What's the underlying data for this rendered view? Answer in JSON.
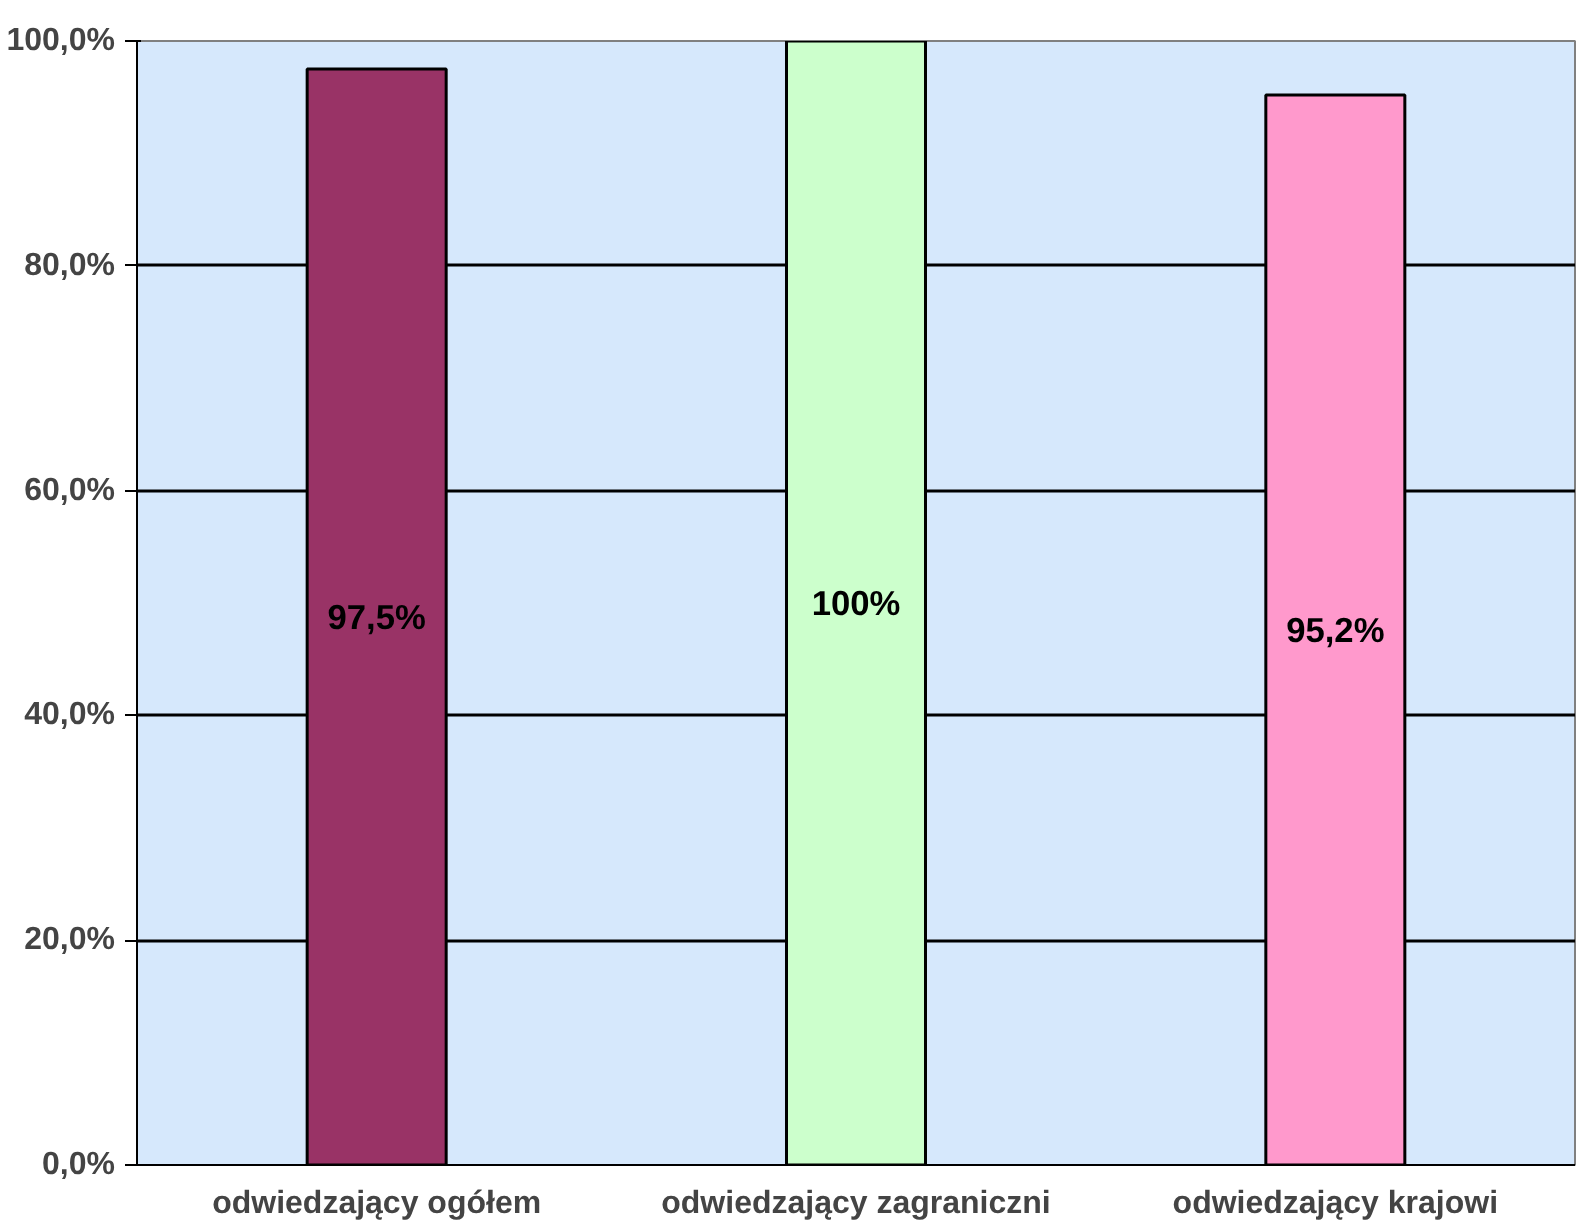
{
  "chart_data": {
    "type": "bar",
    "categories": [
      "odwiedzający ogółem",
      "odwiedzający zagraniczni",
      "odwiedzający krajowi"
    ],
    "values": [
      97.5,
      100,
      95.2
    ],
    "colors": [
      "#993366",
      "#ccffcc",
      "#ff99cc"
    ],
    "value_labels": [
      "97,5%",
      "100%",
      "95,2%"
    ],
    "ylim": [
      0,
      100
    ],
    "yticks": [
      {
        "value": 0,
        "label": "0,0%"
      },
      {
        "value": 20,
        "label": "20,0%"
      },
      {
        "value": 40,
        "label": "40,0%"
      },
      {
        "value": 60,
        "label": "60,0%"
      },
      {
        "value": 80,
        "label": "80,0%"
      },
      {
        "value": 100,
        "label": "100,0%"
      }
    ],
    "grid": "y"
  }
}
